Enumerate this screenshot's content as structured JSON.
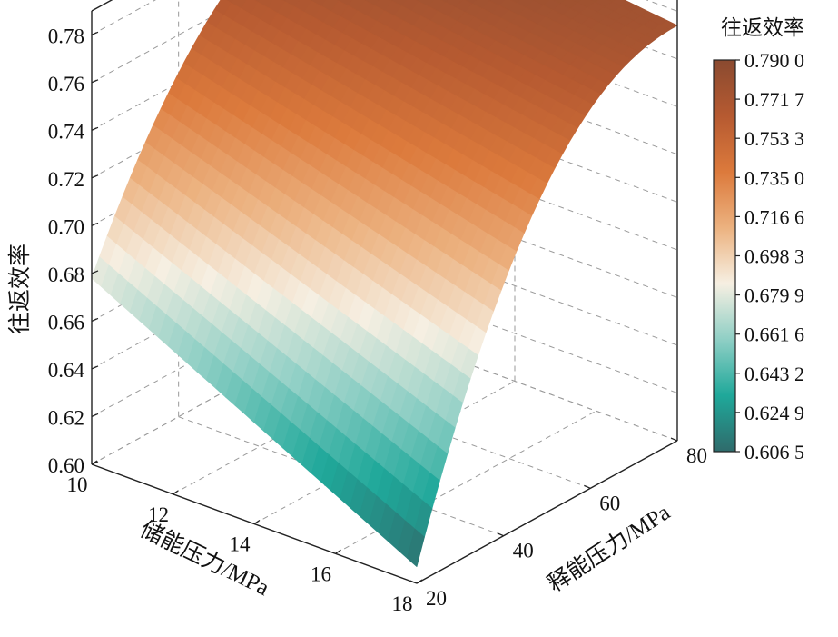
{
  "chart_data": {
    "type": "surface",
    "title": "",
    "zlabel": "往返效率",
    "xlabel": "储能压力/MPa",
    "ylabel": "释能压力/MPa",
    "x_ticks": [
      "10",
      "12",
      "14",
      "16",
      "18"
    ],
    "y_ticks": [
      "20",
      "40",
      "60",
      "80"
    ],
    "z_ticks": [
      "0.60",
      "0.62",
      "0.64",
      "0.66",
      "0.68",
      "0.70",
      "0.72",
      "0.74",
      "0.76",
      "0.78"
    ],
    "xlim": [
      10,
      18
    ],
    "ylim": [
      20,
      80
    ],
    "zlim": [
      0.6,
      0.79
    ],
    "grid": true,
    "colorbar": {
      "title": "往返效率",
      "ticks": [
        "0.790 0",
        "0.771 7",
        "0.753 3",
        "0.735 0",
        "0.716 6",
        "0.698 3",
        "0.679 9",
        "0.661 6",
        "0.643 2",
        "0.624 9",
        "0.606 5"
      ],
      "min": 0.6065,
      "max": 0.79,
      "colors": [
        "#2f6b6b",
        "#1fa89a",
        "#8fcfc5",
        "#f6efe2",
        "#ecb280",
        "#dc7a3c",
        "#b65a31",
        "#8a4a30"
      ]
    },
    "corners": [
      {
        "x": 10,
        "y": 20,
        "z": 0.678
      },
      {
        "x": 18,
        "y": 20,
        "z": 0.607
      },
      {
        "x": 10,
        "y": 80,
        "z": 0.79
      },
      {
        "x": 18,
        "y": 80,
        "z": 0.774
      }
    ]
  }
}
